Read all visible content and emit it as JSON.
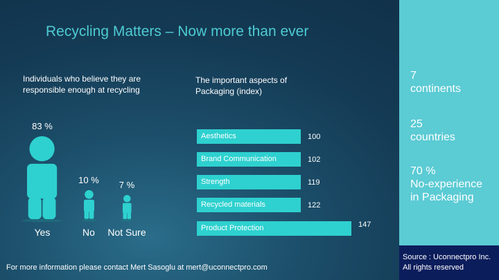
{
  "title": "Recycling Matters – Now more than ever",
  "colors": {
    "accent": "#2ed1cf",
    "title": "#4ecbd3",
    "panel": "#5bcbd4",
    "source_bg": "#0c1d5c"
  },
  "chart_data": [
    {
      "type": "bar",
      "title": "Individuals who believe they are responsible enough at recycling",
      "categories": [
        "Yes",
        "No",
        "Not Sure"
      ],
      "values": [
        83,
        10,
        7
      ],
      "value_labels": [
        "83 %",
        "10 %",
        "7 %"
      ],
      "unit": "%",
      "marker": "person-icon"
    },
    {
      "type": "bar",
      "orientation": "horizontal",
      "title": "The important aspects of Packaging  (index)",
      "categories": [
        "Aesthetics",
        "Brand Communication",
        "Strength",
        "Recycled materials",
        "Product Protection"
      ],
      "values": [
        100,
        102,
        119,
        122,
        147
      ],
      "xlim": [
        0,
        150
      ]
    }
  ],
  "side_panel": {
    "stats": [
      {
        "value": "7",
        "label": "continents"
      },
      {
        "value": "25",
        "label": "countries"
      },
      {
        "value": "70 %",
        "label": "No-experience in Packaging"
      }
    ],
    "source_line1": "Source : Uconnectpro Inc.",
    "source_line2": "All rights reserved"
  },
  "footer": "For more information please contact Mert Sasoglu at mert@uconnectpro.com"
}
